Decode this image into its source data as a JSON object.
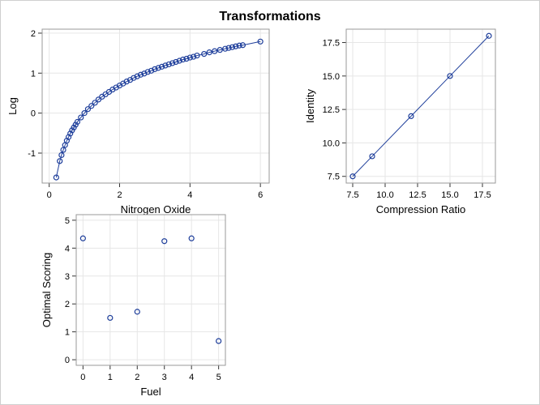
{
  "title": "Transformations",
  "colors": {
    "marker": "#1f3f9b",
    "grid": "#e6e6e6",
    "frame": "#999999"
  },
  "chart_data": [
    {
      "type": "line",
      "xlabel": "Nitrogen Oxide",
      "ylabel": "Log",
      "xlim": [
        -0.2,
        6.25
      ],
      "ylim": [
        -1.75,
        2.1
      ],
      "xticks": [
        0,
        2,
        4,
        6
      ],
      "yticks": [
        -1,
        0,
        1,
        2
      ],
      "grid": true,
      "markers": true,
      "x": [
        0.2,
        0.3,
        0.35,
        0.4,
        0.45,
        0.5,
        0.55,
        0.6,
        0.65,
        0.7,
        0.75,
        0.8,
        0.9,
        1.0,
        1.1,
        1.2,
        1.3,
        1.4,
        1.5,
        1.6,
        1.7,
        1.8,
        1.9,
        2.0,
        2.1,
        2.2,
        2.3,
        2.4,
        2.5,
        2.6,
        2.7,
        2.8,
        2.9,
        3.0,
        3.1,
        3.2,
        3.3,
        3.4,
        3.5,
        3.6,
        3.7,
        3.8,
        3.9,
        4.0,
        4.1,
        4.2,
        4.4,
        4.55,
        4.7,
        4.85,
        5.0,
        5.1,
        5.2,
        5.3,
        5.4,
        5.5,
        6.0
      ],
      "y": [
        -1.61,
        -1.2,
        -1.05,
        -0.92,
        -0.8,
        -0.69,
        -0.6,
        -0.51,
        -0.43,
        -0.36,
        -0.29,
        -0.22,
        -0.11,
        0.0,
        0.1,
        0.18,
        0.26,
        0.34,
        0.41,
        0.47,
        0.53,
        0.59,
        0.64,
        0.69,
        0.74,
        0.79,
        0.83,
        0.88,
        0.92,
        0.96,
        0.99,
        1.03,
        1.06,
        1.1,
        1.13,
        1.16,
        1.19,
        1.22,
        1.25,
        1.28,
        1.31,
        1.34,
        1.36,
        1.39,
        1.41,
        1.44,
        1.48,
        1.52,
        1.55,
        1.58,
        1.61,
        1.63,
        1.65,
        1.67,
        1.69,
        1.7,
        1.79
      ]
    },
    {
      "type": "line",
      "xlabel": "Compression Ratio",
      "ylabel": "Identity",
      "xlim": [
        7.0,
        18.5
      ],
      "ylim": [
        7.0,
        18.5
      ],
      "xticks": [
        7.5,
        10.0,
        12.5,
        15.0,
        17.5
      ],
      "yticks": [
        7.5,
        10.0,
        12.5,
        15.0,
        17.5
      ],
      "grid": true,
      "markers": true,
      "x": [
        7.5,
        9,
        12,
        15,
        18
      ],
      "y": [
        7.5,
        9,
        12,
        15,
        18
      ]
    },
    {
      "type": "scatter",
      "xlabel": "Fuel",
      "ylabel": "Optimal Scoring",
      "xlim": [
        -0.25,
        5.25
      ],
      "ylim": [
        -0.2,
        5.2
      ],
      "xticks": [
        0,
        1,
        2,
        3,
        4,
        5
      ],
      "yticks": [
        0,
        1,
        2,
        3,
        4,
        5
      ],
      "grid": true,
      "markers": true,
      "x": [
        0,
        1,
        2,
        3,
        4,
        5
      ],
      "y": [
        4.35,
        1.5,
        1.72,
        4.25,
        4.35,
        0.67
      ]
    }
  ]
}
